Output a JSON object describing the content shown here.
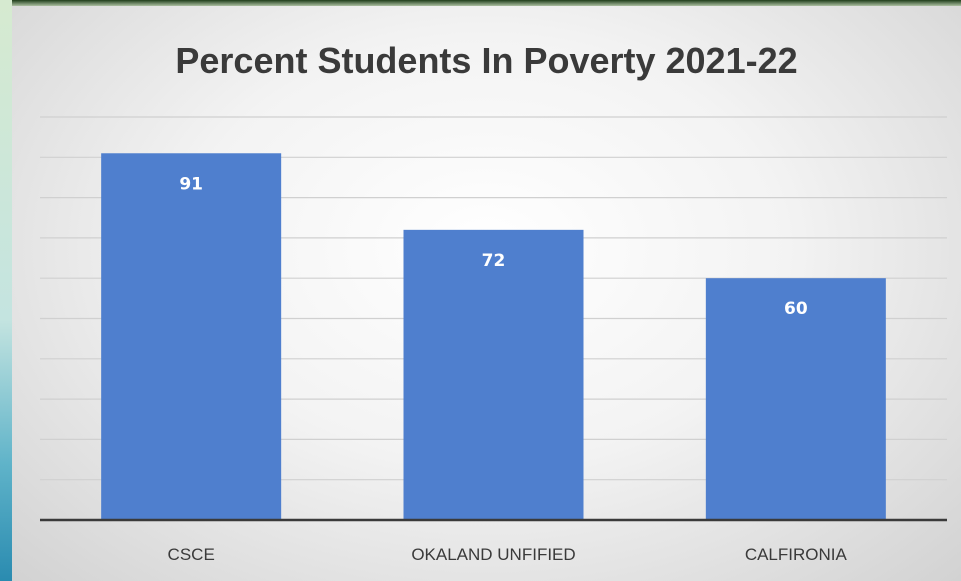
{
  "chart_data": {
    "type": "bar",
    "title": "Percent Students In Poverty 2021-22",
    "xlabel": "",
    "ylabel": "",
    "categories": [
      "CSCE",
      "OKALAND UNFIFIED",
      "CALFIRONIA"
    ],
    "values": [
      91,
      72,
      60
    ],
    "data_labels": [
      "91",
      "72",
      "60"
    ],
    "ylim": [
      0,
      100
    ],
    "gridlines": true,
    "legend": "none",
    "colors": {
      "bar": "#4f7fce",
      "bar_label": "#ffffff",
      "gridline": "#d0d0d0",
      "axis": "#3a3a3a",
      "tick_label": "#3a3a3a",
      "title": "#3a3a3a"
    }
  }
}
